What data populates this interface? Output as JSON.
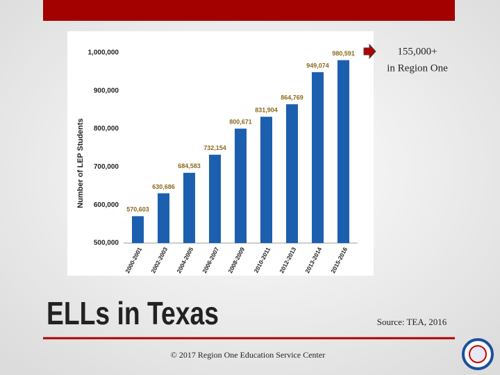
{
  "chart_data": {
    "type": "bar",
    "y_label": "Number of LEP Students",
    "categories": [
      "2000-2001",
      "2002-2003",
      "2004-2005",
      "2006-2007",
      "2008-2009",
      "2010-2011",
      "2012-2013",
      "2013-2014",
      "2015-2016"
    ],
    "values": [
      570603,
      630686,
      684583,
      732154,
      800671,
      831904,
      864769,
      949074,
      980591
    ],
    "value_labels": [
      "570,603",
      "630,686",
      "684,583",
      "732,154",
      "800,671",
      "831,904",
      "864,769",
      "949,074",
      "980,591"
    ],
    "color": "#1c5faf",
    "ylim": [
      500000,
      1000000
    ],
    "yticks": [
      {
        "value": 500000,
        "label": "500,000"
      },
      {
        "value": 600000,
        "label": "600,000"
      },
      {
        "value": 700000,
        "label": "700,000"
      },
      {
        "value": 800000,
        "label": "800,000"
      },
      {
        "value": 900000,
        "label": "900,000"
      },
      {
        "value": 1000000,
        "label": "1,000,000"
      }
    ],
    "grid": false
  },
  "callout": {
    "lines": [
      "155,000+",
      "in Region One"
    ]
  },
  "title": "ELLs in Texas",
  "source": "Source: TEA, 2016",
  "footer": "© 2017 Region One Education Service Center"
}
